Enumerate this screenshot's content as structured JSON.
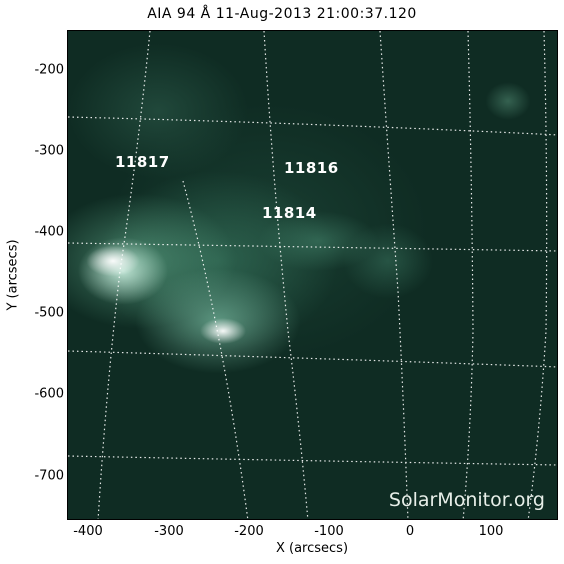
{
  "title": "AIA 94 Å 11-Aug-2013 21:00:37.120",
  "axes": {
    "x_label": "X (arcsecs)",
    "y_label": "Y (arcsecs)",
    "x_ticks": [
      "-400",
      "-300",
      "-200",
      "-100",
      "0",
      "100"
    ],
    "y_ticks": [
      "-200",
      "-300",
      "-400",
      "-500",
      "-600",
      "-700"
    ]
  },
  "regions": [
    "11817",
    "11816",
    "11814"
  ],
  "watermark": "SolarMonitor.org",
  "colors": {
    "background": "#0f2c23",
    "labels": "#ffffff",
    "grid": "#ffffff"
  }
}
